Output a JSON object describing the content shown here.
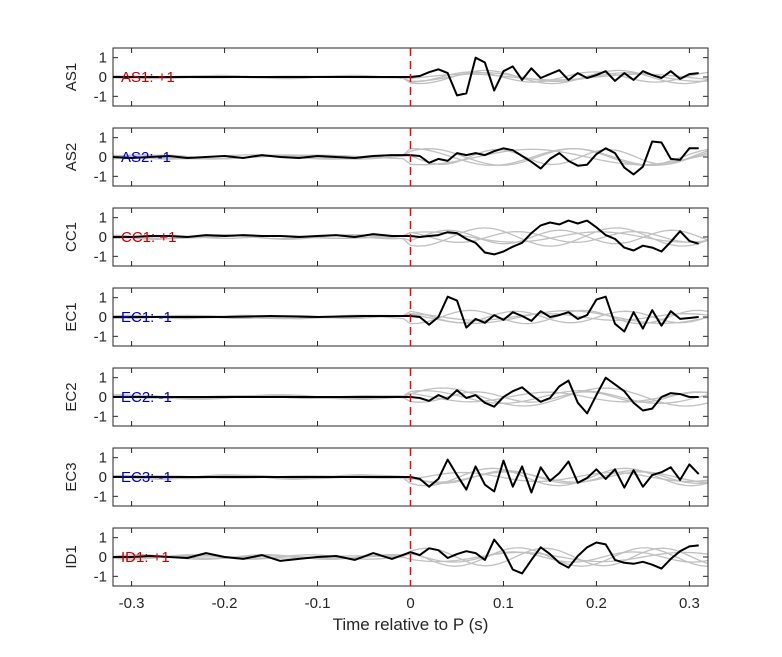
{
  "chart_data": {
    "type": "line",
    "xlabel": "Time relative to P (s)",
    "xlim": [
      -0.32,
      0.32
    ],
    "x_ticks": [
      -0.3,
      -0.2,
      -0.1,
      0,
      0.1,
      0.2,
      0.3
    ],
    "x_tick_labels": [
      "-0.3",
      "-0.2",
      "-0.1",
      "0",
      "0.1",
      "0.2",
      "0.3"
    ],
    "ylim": [
      -1.5,
      1.5
    ],
    "y_ticks": [
      1,
      0,
      -1
    ],
    "y_tick_labels": [
      "1",
      "0",
      "-1"
    ],
    "grid": false,
    "marker_line": {
      "x": 0,
      "color": "#ff0000",
      "style": "dashed"
    },
    "colors": {
      "trace": "#000000",
      "background_traces": "#c0c0c0",
      "positive_label": "#cc0000",
      "negative_label": "#0000cc",
      "frame": "#262626"
    },
    "panels": [
      {
        "station": "AS1",
        "label": "AS1: +1",
        "label_color": "#cc0000",
        "series_x": [
          -0.32,
          -0.25,
          -0.2,
          -0.15,
          -0.1,
          -0.05,
          -0.01,
          0.0,
          0.01,
          0.02,
          0.03,
          0.04,
          0.05,
          0.06,
          0.07,
          0.08,
          0.09,
          0.1,
          0.11,
          0.12,
          0.13,
          0.14,
          0.15,
          0.16,
          0.17,
          0.18,
          0.19,
          0.2,
          0.21,
          0.22,
          0.23,
          0.24,
          0.25,
          0.26,
          0.27,
          0.28,
          0.29,
          0.3,
          0.31
        ],
        "series_y": [
          0,
          0,
          0,
          0,
          0,
          0,
          0,
          0,
          0.05,
          0.25,
          0.4,
          0.2,
          -0.95,
          -0.85,
          1,
          0.75,
          -0.7,
          0.3,
          0.55,
          -0.15,
          0.45,
          -0.05,
          0.15,
          0.35,
          -0.15,
          0.2,
          -0.05,
          0.1,
          0.3,
          -0.2,
          0.2,
          -0.15,
          0.3,
          0.1,
          -0.05,
          0.3,
          -0.1,
          0.15,
          0.2
        ]
      },
      {
        "station": "AS2",
        "label": "AS2: -1",
        "label_color": "#0000cc",
        "series_x": [
          -0.32,
          -0.3,
          -0.28,
          -0.26,
          -0.24,
          -0.22,
          -0.2,
          -0.18,
          -0.16,
          -0.14,
          -0.12,
          -0.1,
          -0.08,
          -0.06,
          -0.04,
          -0.02,
          0.0,
          0.01,
          0.02,
          0.03,
          0.04,
          0.05,
          0.06,
          0.07,
          0.08,
          0.09,
          0.1,
          0.11,
          0.12,
          0.13,
          0.14,
          0.15,
          0.16,
          0.17,
          0.18,
          0.19,
          0.2,
          0.21,
          0.22,
          0.23,
          0.24,
          0.25,
          0.26,
          0.27,
          0.28,
          0.29,
          0.3,
          0.31
        ],
        "series_y": [
          0,
          -0.05,
          0,
          0.05,
          -0.05,
          0,
          0.05,
          -0.05,
          0.1,
          0,
          -0.05,
          0.05,
          0,
          -0.05,
          0.05,
          0.1,
          0.1,
          0.05,
          -0.3,
          -0.1,
          -0.2,
          0.2,
          0.1,
          0.2,
          0.1,
          0.3,
          0.45,
          0.35,
          0.05,
          -0.25,
          -0.6,
          -0.1,
          0.2,
          -0.2,
          -0.45,
          -0.4,
          0.15,
          0.45,
          0.2,
          -0.55,
          -0.9,
          -0.5,
          0.8,
          0.75,
          -0.1,
          -0.15,
          0.45,
          0.45
        ]
      },
      {
        "station": "CC1",
        "label": "CC1: +1",
        "label_color": "#cc0000",
        "series_x": [
          -0.32,
          -0.3,
          -0.28,
          -0.26,
          -0.24,
          -0.22,
          -0.2,
          -0.18,
          -0.16,
          -0.14,
          -0.12,
          -0.1,
          -0.08,
          -0.06,
          -0.04,
          -0.02,
          0.0,
          0.01,
          0.02,
          0.03,
          0.04,
          0.05,
          0.06,
          0.07,
          0.08,
          0.09,
          0.1,
          0.11,
          0.12,
          0.13,
          0.14,
          0.15,
          0.16,
          0.17,
          0.18,
          0.19,
          0.2,
          0.21,
          0.22,
          0.23,
          0.24,
          0.25,
          0.26,
          0.27,
          0.28,
          0.29,
          0.3,
          0.31
        ],
        "series_y": [
          0,
          0,
          0.05,
          0.05,
          0,
          0.1,
          0.05,
          0.1,
          0.05,
          0.05,
          0,
          0.05,
          0.1,
          0,
          0.15,
          0.05,
          0.05,
          0,
          0.05,
          0.1,
          0.25,
          0.2,
          -0.1,
          -0.3,
          -0.8,
          -0.9,
          -0.75,
          -0.5,
          -0.3,
          0.2,
          0.6,
          0.75,
          0.65,
          0.85,
          0.7,
          0.85,
          0.5,
          0.1,
          -0.1,
          -0.55,
          -0.7,
          -0.45,
          -0.55,
          -0.75,
          -0.25,
          0.3,
          -0.2,
          -0.35
        ]
      },
      {
        "station": "EC1",
        "label": "EC1: -1",
        "label_color": "#0000cc",
        "series_x": [
          -0.32,
          -0.25,
          -0.2,
          -0.15,
          -0.1,
          -0.05,
          -0.01,
          0.0,
          0.01,
          0.02,
          0.03,
          0.04,
          0.05,
          0.06,
          0.07,
          0.08,
          0.09,
          0.1,
          0.11,
          0.12,
          0.13,
          0.14,
          0.15,
          0.16,
          0.17,
          0.18,
          0.19,
          0.2,
          0.21,
          0.22,
          0.23,
          0.24,
          0.25,
          0.26,
          0.27,
          0.28,
          0.29,
          0.3,
          0.31
        ],
        "series_y": [
          0,
          0,
          0,
          0.05,
          0,
          0.05,
          0.05,
          0.05,
          0,
          -0.4,
          0,
          1.05,
          0.85,
          -0.55,
          -0.1,
          -0.3,
          0.1,
          -0.15,
          0.25,
          0.05,
          -0.2,
          0.3,
          0,
          0.1,
          0.25,
          -0.1,
          0.1,
          0.9,
          1.05,
          -0.35,
          -0.75,
          0.25,
          -0.6,
          0.35,
          -0.45,
          0.3,
          -0.1,
          -0.05,
          0.0
        ]
      },
      {
        "station": "EC2",
        "label": "EC2: -1",
        "label_color": "#0000cc",
        "series_x": [
          -0.32,
          -0.25,
          -0.2,
          -0.15,
          -0.1,
          -0.05,
          -0.01,
          0.0,
          0.01,
          0.02,
          0.03,
          0.04,
          0.05,
          0.06,
          0.07,
          0.08,
          0.09,
          0.1,
          0.11,
          0.12,
          0.13,
          0.14,
          0.15,
          0.16,
          0.17,
          0.18,
          0.19,
          0.2,
          0.21,
          0.22,
          0.23,
          0.24,
          0.25,
          0.26,
          0.27,
          0.28,
          0.29,
          0.3,
          0.31
        ],
        "series_y": [
          0,
          0,
          0,
          0,
          0,
          0,
          0,
          0,
          -0.05,
          -0.2,
          0.1,
          -0.1,
          0.35,
          -0.05,
          0.1,
          -0.3,
          -0.5,
          0,
          0.3,
          0.5,
          0.1,
          -0.25,
          -0.05,
          0.55,
          0.85,
          -0.3,
          -0.85,
          0.1,
          1,
          0.65,
          0.3,
          -0.3,
          -0.7,
          -0.6,
          0,
          0.2,
          0.15,
          0.0,
          0
        ]
      },
      {
        "station": "EC3",
        "label": "EC3: -1",
        "label_color": "#0000cc",
        "series_x": [
          -0.32,
          -0.25,
          -0.2,
          -0.15,
          -0.1,
          -0.05,
          -0.01,
          0.0,
          0.01,
          0.02,
          0.03,
          0.04,
          0.05,
          0.06,
          0.07,
          0.08,
          0.09,
          0.1,
          0.11,
          0.12,
          0.13,
          0.14,
          0.15,
          0.16,
          0.17,
          0.18,
          0.19,
          0.2,
          0.21,
          0.22,
          0.23,
          0.24,
          0.25,
          0.26,
          0.27,
          0.28,
          0.29,
          0.3,
          0.31
        ],
        "series_y": [
          0,
          0,
          0,
          0,
          0,
          0,
          0,
          0,
          -0.1,
          -0.5,
          -0.1,
          0.9,
          0.1,
          -0.65,
          0.55,
          -0.4,
          -0.75,
          0.85,
          -0.5,
          0.55,
          -0.8,
          0.5,
          -0.2,
          0.2,
          0.8,
          -0.3,
          -0.05,
          0.4,
          -0.1,
          0.4,
          -0.55,
          0.35,
          -0.5,
          0.1,
          0.25,
          0.5,
          -0.15,
          0.65,
          0.15
        ]
      },
      {
        "station": "ID1",
        "label": "ID1: +1",
        "label_color": "#cc0000",
        "series_x": [
          -0.32,
          -0.3,
          -0.28,
          -0.26,
          -0.24,
          -0.22,
          -0.2,
          -0.18,
          -0.16,
          -0.14,
          -0.12,
          -0.1,
          -0.08,
          -0.06,
          -0.04,
          -0.02,
          0.0,
          0.01,
          0.02,
          0.03,
          0.04,
          0.05,
          0.06,
          0.07,
          0.08,
          0.09,
          0.1,
          0.11,
          0.12,
          0.13,
          0.14,
          0.15,
          0.16,
          0.17,
          0.18,
          0.19,
          0.2,
          0.21,
          0.22,
          0.23,
          0.24,
          0.25,
          0.26,
          0.27,
          0.28,
          0.29,
          0.3,
          0.31
        ],
        "series_y": [
          0,
          0,
          0.05,
          0,
          -0.05,
          0.2,
          0,
          -0.1,
          0.1,
          -0.2,
          -0.1,
          0,
          0.05,
          -0.15,
          0.2,
          -0.1,
          0.25,
          0.1,
          0.45,
          0.35,
          -0.05,
          0.15,
          0.3,
          0.2,
          -0.15,
          0.9,
          0.3,
          -0.65,
          -0.85,
          -0.15,
          0.5,
          0.15,
          -0.3,
          -0.55,
          0.05,
          0.5,
          0.75,
          0.65,
          -0.15,
          -0.3,
          -0.35,
          -0.25,
          -0.4,
          -0.6,
          -0.1,
          0.3,
          0.55,
          0.6
        ]
      }
    ]
  }
}
